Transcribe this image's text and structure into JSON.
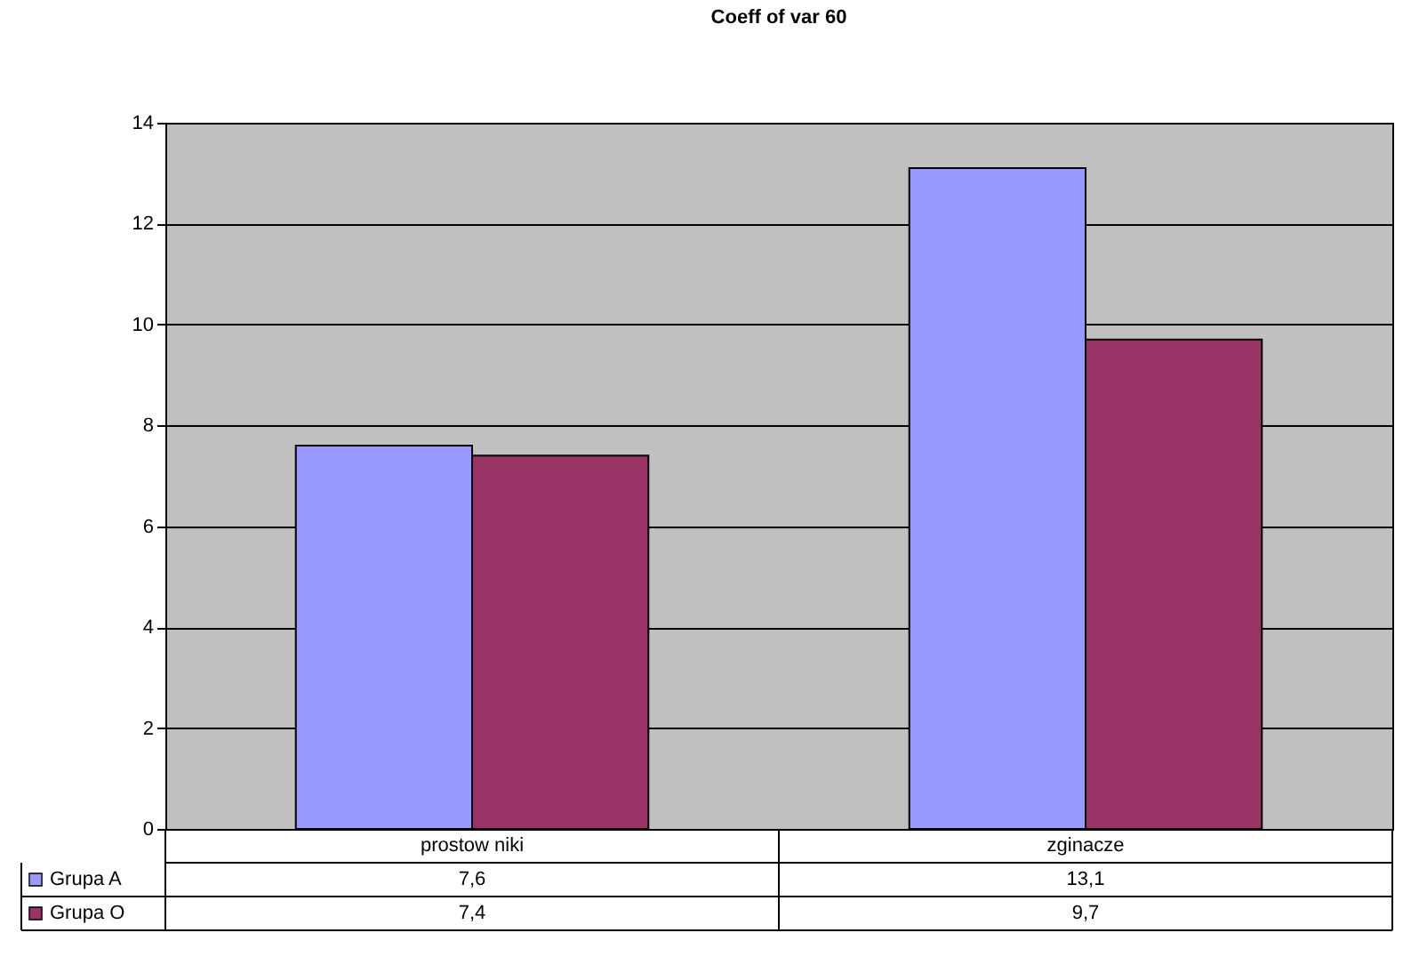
{
  "chart_data": {
    "type": "bar",
    "title": "Coeff of var 60",
    "categories": [
      "prostow niki",
      "zginacze"
    ],
    "series": [
      {
        "name": "Grupa A",
        "color": "#9999ff",
        "values": [
          7.6,
          13.1
        ],
        "value_labels": [
          "7,6",
          "13,1"
        ]
      },
      {
        "name": "Grupa O",
        "color": "#993366",
        "values": [
          7.4,
          9.7
        ],
        "value_labels": [
          "7,4",
          "9,7"
        ]
      }
    ],
    "ylim": [
      0,
      14
    ],
    "yticks": [
      0,
      2,
      4,
      6,
      8,
      10,
      12,
      14
    ],
    "grid": "y",
    "legend": "bottom left"
  }
}
